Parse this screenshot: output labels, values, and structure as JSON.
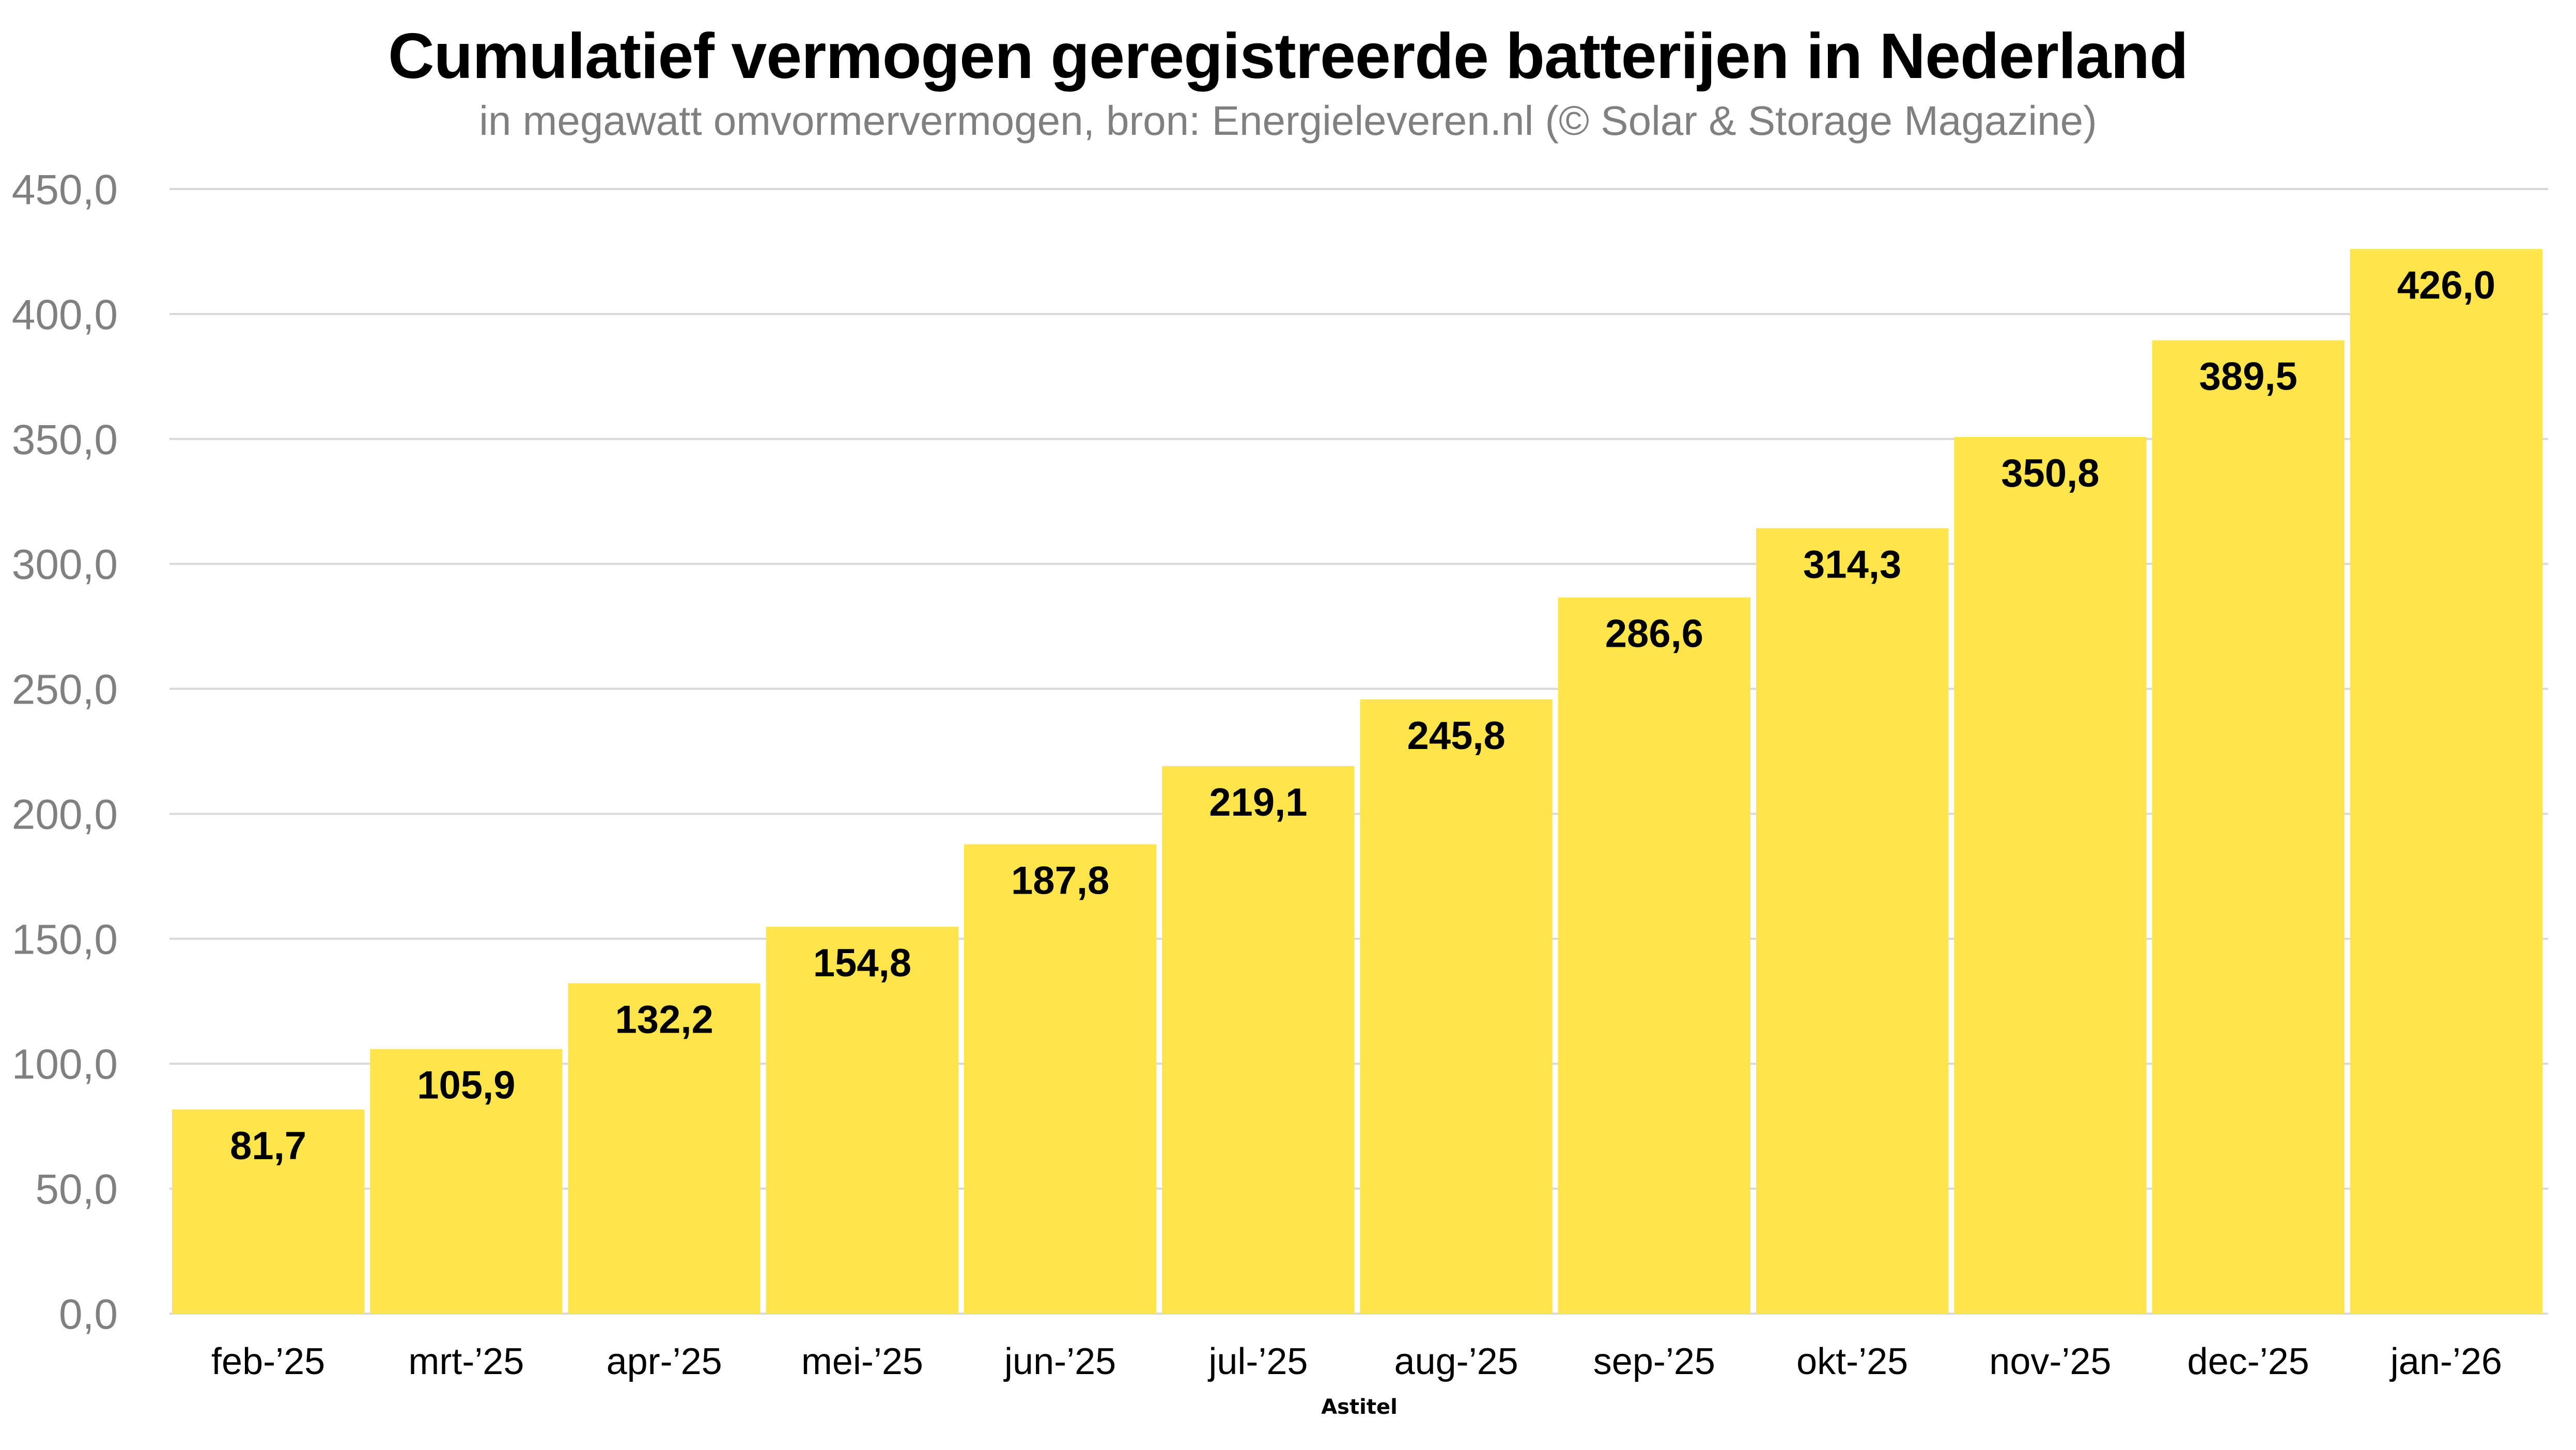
{
  "chart_data": {
    "type": "bar",
    "title": "Cumulatief vermogen geregistreerde batterijen in Nederland",
    "subtitle": "in megawatt omvormervermogen, bron: Energieleveren.nl (© Solar & Storage Magazine)",
    "xlabel": "Astitel",
    "ylabel": "",
    "categories": [
      "feb-’25",
      "mrt-’25",
      "apr-’25",
      "mei-’25",
      "jun-’25",
      "jul-’25",
      "aug-’25",
      "sep-’25",
      "okt-’25",
      "nov-’25",
      "dec-’25",
      "jan-’26"
    ],
    "values": [
      81.7,
      105.9,
      132.2,
      154.8,
      187.8,
      219.1,
      245.8,
      286.6,
      314.3,
      350.8,
      389.5,
      426.0
    ],
    "data_labels": [
      "81,7",
      "105,9",
      "132,2",
      "154,8",
      "187,8",
      "219,1",
      "245,8",
      "286,6",
      "314,3",
      "350,8",
      "389,5",
      "426,0"
    ],
    "ylim": [
      0,
      450
    ],
    "yticks": [
      0,
      50,
      100,
      150,
      200,
      250,
      300,
      350,
      400,
      450
    ],
    "ytick_labels": [
      "0,0",
      "50,0",
      "100,0",
      "150,0",
      "200,0",
      "250,0",
      "300,0",
      "350,0",
      "400,0",
      "450,0"
    ],
    "grid": true,
    "legend": "none",
    "colors": {
      "bar": "#FFE54C",
      "grid": "#D9D9D9",
      "tick_text": "#808080",
      "label_text": "#000000"
    }
  }
}
